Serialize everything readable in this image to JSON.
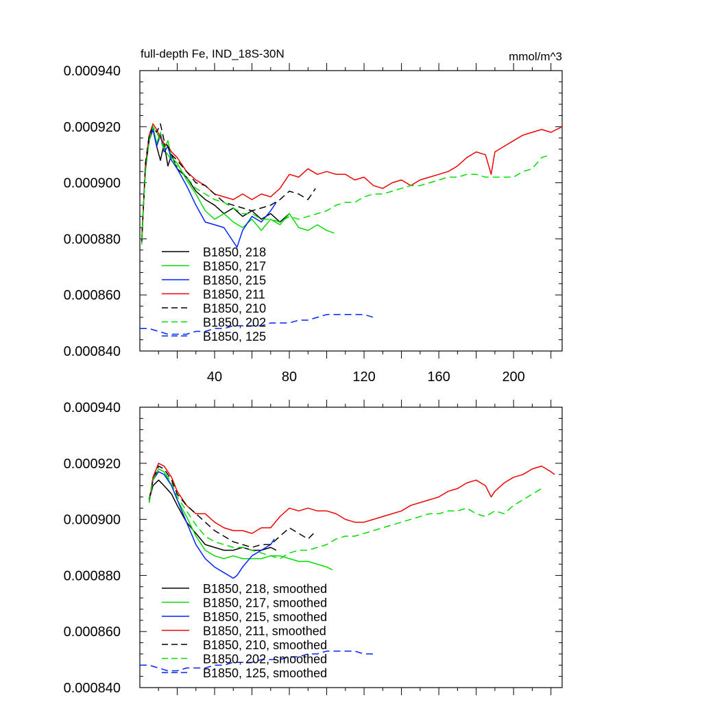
{
  "chart_data": [
    {
      "type": "line",
      "title": "full-depth Fe, IND_18S-30N",
      "units": "mmol/m^3",
      "xlim": [
        0,
        226
      ],
      "ylim": [
        0.00084,
        0.00094
      ],
      "xticks": [
        40,
        80,
        120,
        160,
        200
      ],
      "xtick_labels": [
        "40",
        "80",
        "120",
        "160",
        "200"
      ],
      "yticks": [
        0.00084,
        0.00086,
        0.00088,
        0.0009,
        0.00092,
        0.00094
      ],
      "ytick_labels": [
        "0.000840",
        "0.000860",
        "0.000880",
        "0.000900",
        "0.000920",
        "0.000940"
      ],
      "legend_placement": "bottom-left",
      "series": [
        {
          "name": "B1850, 218",
          "color": "#000000",
          "dash": false,
          "x": [
            1,
            3,
            5,
            7,
            9,
            11,
            13,
            15,
            17,
            20,
            25,
            30,
            35,
            40,
            45,
            50,
            55,
            60,
            65,
            70,
            75,
            80
          ],
          "y": [
            0.00088,
            0.000905,
            0.000915,
            0.000919,
            0.000913,
            0.000908,
            0.000914,
            0.000906,
            0.00091,
            0.000905,
            0.000902,
            0.000897,
            0.000894,
            0.000892,
            0.000889,
            0.000891,
            0.000888,
            0.00089,
            0.000887,
            0.000889,
            0.000886,
            0.000889
          ]
        },
        {
          "name": "B1850, 217",
          "color": "#00dd00",
          "dash": false,
          "x": [
            1,
            3,
            5,
            7,
            9,
            11,
            13,
            15,
            17,
            20,
            25,
            30,
            35,
            40,
            45,
            50,
            55,
            60,
            65,
            70,
            75,
            80,
            85,
            90,
            95,
            100,
            104
          ],
          "y": [
            0.000878,
            0.000906,
            0.000916,
            0.00092,
            0.000914,
            0.000918,
            0.000912,
            0.000915,
            0.000909,
            0.000907,
            0.000901,
            0.000896,
            0.00089,
            0.000887,
            0.000889,
            0.000886,
            0.000884,
            0.000887,
            0.000883,
            0.000887,
            0.000885,
            0.000889,
            0.000884,
            0.000883,
            0.000885,
            0.000883,
            0.000882
          ]
        },
        {
          "name": "B1850, 215",
          "color": "#0022ff",
          "dash": false,
          "x": [
            1,
            3,
            5,
            7,
            9,
            11,
            13,
            15,
            17,
            20,
            25,
            30,
            35,
            40,
            45,
            50,
            52,
            55,
            60,
            65,
            70,
            73
          ],
          "y": [
            0.000879,
            0.000906,
            0.000916,
            0.000919,
            0.000913,
            0.000917,
            0.000911,
            0.000913,
            0.000908,
            0.000905,
            0.000899,
            0.000892,
            0.000886,
            0.000885,
            0.000884,
            0.000879,
            0.000877,
            0.000883,
            0.000888,
            0.000886,
            0.00089,
            0.000893
          ]
        },
        {
          "name": "B1850, 211",
          "color": "#ee0000",
          "dash": false,
          "x": [
            1,
            3,
            5,
            7,
            9,
            11,
            13,
            15,
            17,
            20,
            25,
            30,
            35,
            40,
            45,
            50,
            55,
            60,
            65,
            70,
            75,
            80,
            85,
            90,
            95,
            100,
            105,
            110,
            115,
            120,
            125,
            130,
            135,
            140,
            145,
            150,
            155,
            160,
            165,
            170,
            175,
            180,
            185,
            188,
            190,
            195,
            200,
            205,
            210,
            215,
            220,
            226
          ],
          "y": [
            0.000879,
            0.000906,
            0.000917,
            0.000921,
            0.000919,
            0.000916,
            0.000914,
            0.000913,
            0.000911,
            0.000909,
            0.000904,
            0.000901,
            0.000899,
            0.000896,
            0.000895,
            0.000894,
            0.000896,
            0.000894,
            0.000896,
            0.000895,
            0.000898,
            0.000903,
            0.000902,
            0.000905,
            0.000903,
            0.000904,
            0.000903,
            0.000903,
            0.000901,
            0.000902,
            0.000899,
            0.000898,
            0.0009,
            0.000901,
            0.000899,
            0.000901,
            0.000902,
            0.000903,
            0.000904,
            0.000906,
            0.000909,
            0.000911,
            0.00091,
            0.000903,
            0.000911,
            0.000913,
            0.000915,
            0.000917,
            0.000918,
            0.000919,
            0.000918,
            0.00092
          ]
        },
        {
          "name": "B1850, 210",
          "color": "#000000",
          "dash": true,
          "x": [
            1,
            3,
            5,
            7,
            9,
            11,
            13,
            15,
            17,
            20,
            25,
            30,
            35,
            40,
            45,
            50,
            55,
            60,
            65,
            70,
            75,
            80,
            85,
            90,
            94
          ],
          "y": [
            0.000879,
            0.000907,
            0.000917,
            0.00092,
            0.000918,
            0.000921,
            0.000915,
            0.000913,
            0.00091,
            0.000908,
            0.000904,
            0.0009,
            0.000899,
            0.000896,
            0.000893,
            0.000892,
            0.000891,
            0.00089,
            0.000891,
            0.000892,
            0.000894,
            0.000897,
            0.000896,
            0.000894,
            0.000898
          ]
        },
        {
          "name": "B1850, 202",
          "color": "#00dd00",
          "dash": true,
          "x": [
            1,
            3,
            5,
            7,
            9,
            11,
            13,
            15,
            17,
            20,
            25,
            30,
            35,
            40,
            45,
            50,
            55,
            60,
            65,
            70,
            75,
            80,
            85,
            90,
            95,
            100,
            105,
            110,
            115,
            120,
            125,
            130,
            135,
            140,
            145,
            150,
            155,
            160,
            165,
            170,
            175,
            180,
            185,
            190,
            195,
            200,
            205,
            210,
            215,
            220
          ],
          "y": [
            0.00088,
            0.000904,
            0.000915,
            0.00092,
            0.000918,
            0.000915,
            0.000912,
            0.00091,
            0.000908,
            0.000906,
            0.000902,
            0.000898,
            0.000896,
            0.000894,
            0.000893,
            0.000891,
            0.000889,
            0.000889,
            0.000887,
            0.000887,
            0.000886,
            0.000888,
            0.000887,
            0.000888,
            0.000889,
            0.00089,
            0.000892,
            0.000893,
            0.000893,
            0.000895,
            0.000896,
            0.000896,
            0.000897,
            0.000898,
            0.000899,
            0.000899,
            0.0009,
            0.000901,
            0.000902,
            0.000902,
            0.000903,
            0.000903,
            0.000902,
            0.000902,
            0.000902,
            0.000902,
            0.000904,
            0.000905,
            0.000909,
            0.00091
          ]
        },
        {
          "name": "B1850, 125",
          "color": "#0022ff",
          "dash": true,
          "x": [
            0,
            5,
            10,
            15,
            20,
            25,
            30,
            35,
            40,
            45,
            50,
            55,
            60,
            65,
            70,
            75,
            80,
            85,
            90,
            95,
            100,
            105,
            110,
            115,
            120,
            125
          ],
          "y": [
            0.000848,
            0.000848,
            0.000847,
            0.000846,
            0.000846,
            0.000846,
            0.000847,
            0.000847,
            0.000848,
            0.000848,
            0.000849,
            0.000849,
            0.000849,
            0.000849,
            0.00085,
            0.00085,
            0.00085,
            0.000851,
            0.000851,
            0.000852,
            0.000853,
            0.000853,
            0.000853,
            0.000853,
            0.000853,
            0.000852
          ]
        }
      ]
    },
    {
      "type": "line",
      "title": "",
      "units": "",
      "xlim": [
        0,
        226
      ],
      "ylim": [
        0.00084,
        0.00094
      ],
      "xticks": [
        40,
        80,
        120,
        160,
        200
      ],
      "xtick_labels": [],
      "yticks": [
        0.00084,
        0.00086,
        0.00088,
        0.0009,
        0.00092,
        0.00094
      ],
      "ytick_labels": [
        "0.000840",
        "0.000860",
        "0.000880",
        "0.000900",
        "0.000920",
        "0.000940"
      ],
      "legend_placement": "bottom-left",
      "series": [
        {
          "name": "B1850, 218, smoothed",
          "color": "#000000",
          "dash": false,
          "x": [
            5,
            7,
            10,
            13,
            17,
            20,
            25,
            30,
            35,
            40,
            45,
            50,
            55,
            60,
            65,
            70,
            73
          ],
          "y": [
            0.000907,
            0.000912,
            0.000914,
            0.000912,
            0.000909,
            0.000905,
            0.000899,
            0.000895,
            0.000891,
            0.00089,
            0.000889,
            0.000889,
            0.00089,
            0.000889,
            0.000889,
            0.00089,
            0.000889
          ]
        },
        {
          "name": "B1850, 217, smoothed",
          "color": "#00dd00",
          "dash": false,
          "x": [
            5,
            7,
            10,
            13,
            17,
            20,
            25,
            30,
            35,
            40,
            45,
            50,
            55,
            60,
            65,
            70,
            75,
            80,
            85,
            90,
            95,
            100,
            103
          ],
          "y": [
            0.000907,
            0.000914,
            0.000918,
            0.000917,
            0.000912,
            0.000907,
            0.000901,
            0.000894,
            0.000889,
            0.000887,
            0.000886,
            0.000887,
            0.000886,
            0.000886,
            0.000886,
            0.000887,
            0.000887,
            0.000886,
            0.000885,
            0.000885,
            0.000884,
            0.000883,
            0.000882
          ]
        },
        {
          "name": "B1850, 215, smoothed",
          "color": "#0022ff",
          "dash": false,
          "x": [
            5,
            7,
            10,
            13,
            17,
            20,
            25,
            30,
            35,
            40,
            45,
            50,
            52,
            55,
            60,
            65,
            70,
            72
          ],
          "y": [
            0.000906,
            0.000914,
            0.000917,
            0.000916,
            0.000912,
            0.000907,
            0.000899,
            0.000891,
            0.000886,
            0.000883,
            0.000881,
            0.000879,
            0.00088,
            0.000883,
            0.000887,
            0.000889,
            0.000891,
            0.000893
          ]
        },
        {
          "name": "B1850, 211, smoothed",
          "color": "#ee0000",
          "dash": false,
          "x": [
            5,
            7,
            10,
            13,
            17,
            20,
            25,
            30,
            35,
            40,
            45,
            50,
            55,
            60,
            65,
            70,
            75,
            80,
            85,
            90,
            95,
            100,
            105,
            110,
            115,
            120,
            125,
            130,
            135,
            140,
            145,
            150,
            155,
            160,
            165,
            170,
            175,
            180,
            185,
            188,
            190,
            195,
            200,
            205,
            210,
            215,
            220,
            222
          ],
          "y": [
            0.000906,
            0.000915,
            0.00092,
            0.000919,
            0.000915,
            0.00091,
            0.000905,
            0.000902,
            0.000902,
            0.000899,
            0.000897,
            0.000896,
            0.000896,
            0.000895,
            0.000897,
            0.000897,
            0.000901,
            0.000904,
            0.000903,
            0.000904,
            0.000903,
            0.000903,
            0.000902,
            0.0009,
            0.000899,
            0.000899,
            0.0009,
            0.000901,
            0.000902,
            0.000903,
            0.000905,
            0.000906,
            0.000907,
            0.000908,
            0.00091,
            0.000911,
            0.000913,
            0.000914,
            0.000912,
            0.000908,
            0.00091,
            0.000913,
            0.000915,
            0.000916,
            0.000918,
            0.000919,
            0.000917,
            0.000916
          ]
        },
        {
          "name": "B1850, 210, smoothed",
          "color": "#000000",
          "dash": true,
          "x": [
            5,
            7,
            10,
            13,
            17,
            20,
            25,
            30,
            35,
            40,
            45,
            50,
            55,
            60,
            65,
            70,
            75,
            80,
            85,
            90,
            93
          ],
          "y": [
            0.000907,
            0.000914,
            0.000919,
            0.000918,
            0.000914,
            0.000909,
            0.000905,
            0.000902,
            0.000899,
            0.000896,
            0.000894,
            0.000892,
            0.000891,
            0.00089,
            0.000891,
            0.000891,
            0.000894,
            0.000897,
            0.000895,
            0.000893,
            0.000895
          ]
        },
        {
          "name": "B1850, 202, smoothed",
          "color": "#00dd00",
          "dash": true,
          "x": [
            5,
            7,
            10,
            13,
            17,
            20,
            25,
            30,
            35,
            40,
            45,
            50,
            55,
            60,
            65,
            70,
            75,
            80,
            85,
            90,
            95,
            100,
            105,
            110,
            115,
            120,
            125,
            130,
            135,
            140,
            145,
            150,
            155,
            160,
            165,
            170,
            175,
            180,
            185,
            190,
            195,
            200,
            205,
            210,
            215
          ],
          "y": [
            0.000906,
            0.000914,
            0.000918,
            0.000917,
            0.000913,
            0.000908,
            0.000903,
            0.000898,
            0.000894,
            0.000892,
            0.000891,
            0.00089,
            0.00089,
            0.000889,
            0.000888,
            0.000887,
            0.000886,
            0.000888,
            0.000889,
            0.000889,
            0.00089,
            0.000891,
            0.000893,
            0.000894,
            0.000894,
            0.000895,
            0.000896,
            0.000897,
            0.000898,
            0.000899,
            0.0009,
            0.000901,
            0.000902,
            0.000902,
            0.000903,
            0.000903,
            0.000904,
            0.000902,
            0.000901,
            0.000903,
            0.000902,
            0.000905,
            0.000907,
            0.000909,
            0.000911
          ]
        },
        {
          "name": "B1850, 125, smoothed",
          "color": "#0022ff",
          "dash": true,
          "x": [
            0,
            5,
            10,
            15,
            20,
            25,
            30,
            35,
            40,
            45,
            50,
            55,
            60,
            65,
            70,
            75,
            80,
            85,
            90,
            95,
            100,
            105,
            110,
            115,
            120,
            125
          ],
          "y": [
            0.000848,
            0.000848,
            0.000847,
            0.000846,
            0.000846,
            0.000847,
            0.000847,
            0.000847,
            0.000848,
            0.000848,
            0.000849,
            0.000849,
            0.000849,
            0.00085,
            0.00085,
            0.00085,
            0.000851,
            0.000851,
            0.000852,
            0.000852,
            0.000853,
            0.000853,
            0.000853,
            0.000853,
            0.000852,
            0.000852
          ]
        }
      ]
    }
  ]
}
